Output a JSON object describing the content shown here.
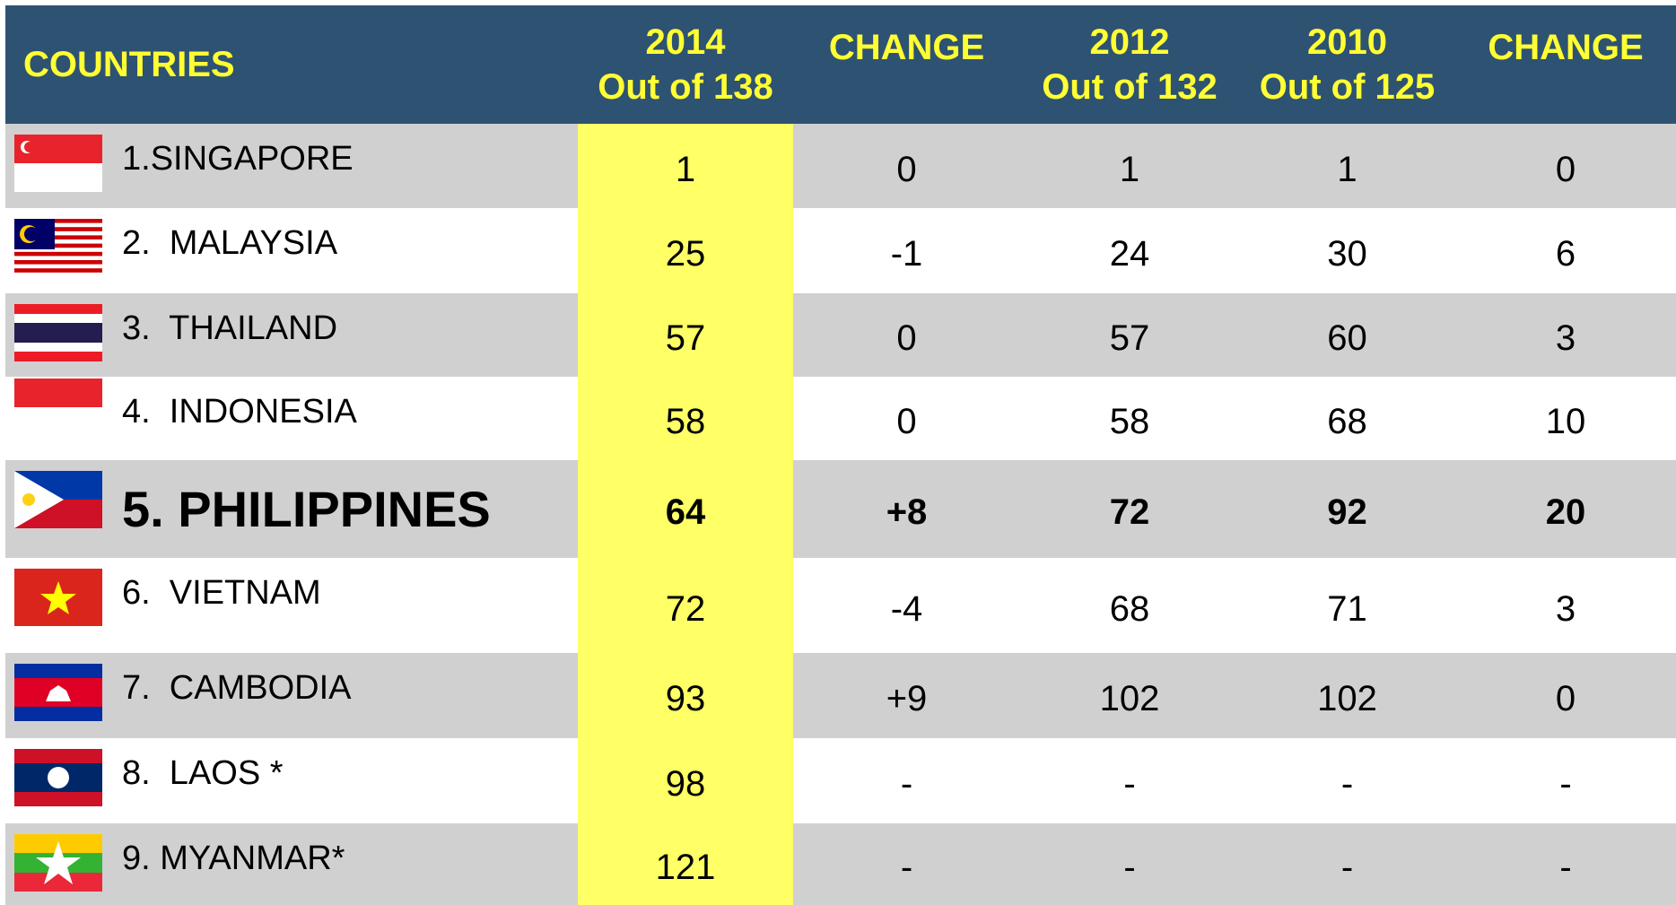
{
  "header": {
    "countries": "COUNTRIES",
    "columns": [
      {
        "year": "2014",
        "sub": "Out of 138"
      },
      {
        "year": "CHANGE"
      },
      {
        "year": "2012",
        "sub": "Out of 132"
      },
      {
        "year": "2010",
        "sub": "Out of 125"
      },
      {
        "year": "CHANGE"
      }
    ]
  },
  "rows": [
    {
      "country": "1.SINGAPORE",
      "values": [
        "1",
        "0",
        "1",
        "1",
        "0"
      ]
    },
    {
      "country": "2.  MALAYSIA",
      "values": [
        "25",
        "-1",
        "24",
        "30",
        "6"
      ]
    },
    {
      "country": "3.  THAILAND",
      "values": [
        "57",
        "0",
        "57",
        "60",
        "3"
      ]
    },
    {
      "country": "4.  INDONESIA",
      "values": [
        "58",
        "0",
        "58",
        "68",
        "10"
      ]
    },
    {
      "country": "5. PHILIPPINES",
      "values": [
        "64",
        "+8",
        "72",
        "92",
        "20"
      ]
    },
    {
      "country": "6.  VIETNAM",
      "values": [
        "72",
        "-4",
        "68",
        "71",
        "3"
      ]
    },
    {
      "country": "7.  CAMBODIA",
      "values": [
        "93",
        "+9",
        "102",
        "102",
        "0"
      ]
    },
    {
      "country": "8.  LAOS *",
      "values": [
        "98",
        "-",
        "-",
        "-",
        "-"
      ]
    },
    {
      "country": "9. MYANMAR*",
      "values": [
        "121",
        "-",
        "-",
        "-",
        "-"
      ]
    }
  ]
}
